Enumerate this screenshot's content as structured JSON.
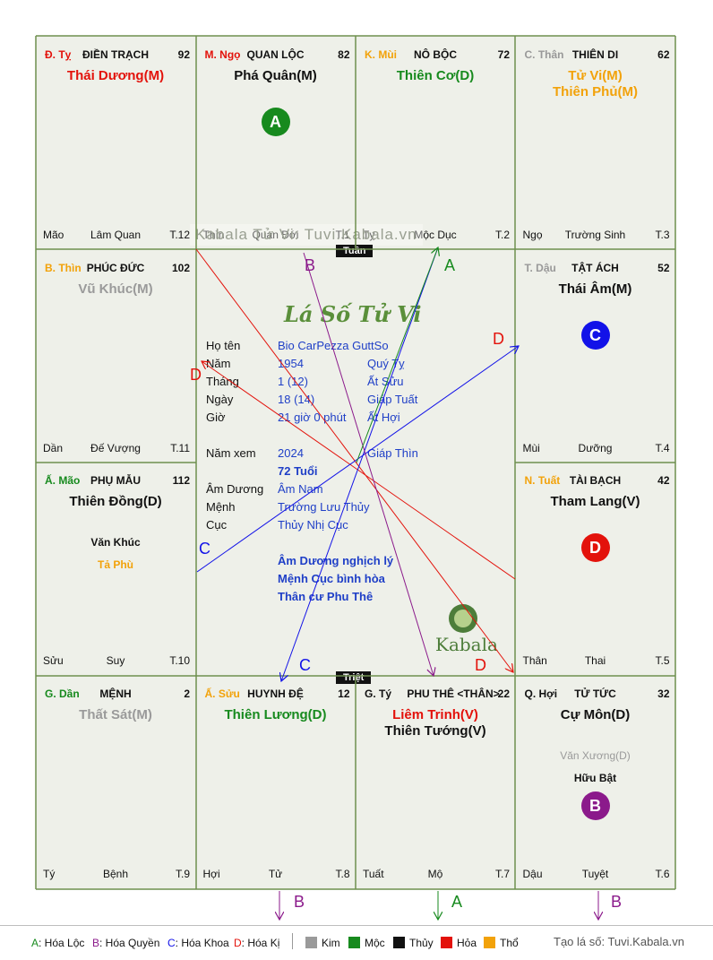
{
  "watermark": "Kabala Tử Vi: Tuvi.Kabala.vn",
  "script_title": "Lá Số Tử Vi",
  "logo_text": "Kabala",
  "tags": {
    "tuan": "Tuần",
    "triet": "Triệt"
  },
  "palaces": [
    {
      "branch": "Đ. Tỵ",
      "branch_color": "#e3120b",
      "name": "ĐIỀN TRẠCH",
      "num": "92",
      "stars": [
        {
          "t": "Thái Dương(M)",
          "c": "#e3120b"
        }
      ],
      "minor": [],
      "bl": "Mão",
      "bc": "Lâm Quan",
      "br": "T.12",
      "badge": null
    },
    {
      "branch": "M. Ngọ",
      "branch_color": "#e3120b",
      "name": "QUAN LỘC",
      "num": "82",
      "stars": [
        {
          "t": "Phá Quân(M)",
          "c": "#111111"
        }
      ],
      "minor": [],
      "bl": "Thìn",
      "bc": "Quan Đới",
      "br": "T.1",
      "badge": {
        "t": "A",
        "c": "#178a1e"
      }
    },
    {
      "branch": "K. Mùi",
      "branch_color": "#f2a20a",
      "name": "NÔ BỘC",
      "num": "72",
      "stars": [
        {
          "t": "Thiên Cơ(D)",
          "c": "#178a1e"
        }
      ],
      "minor": [],
      "bl": "Tỵ",
      "bc": "Mộc Dục",
      "br": "T.2",
      "badge": null
    },
    {
      "branch": "C. Thân",
      "branch_color": "#999999",
      "name": "THIÊN DI",
      "num": "62",
      "stars": [
        {
          "t": "Tử Vi(M)",
          "c": "#f2a20a"
        },
        {
          "t": "Thiên Phủ(M)",
          "c": "#f2a20a"
        }
      ],
      "minor": [],
      "bl": "Ngọ",
      "bc": "Trường Sinh",
      "br": "T.3",
      "badge": null
    },
    {
      "branch": "B. Thìn",
      "branch_color": "#f2a20a",
      "name": "PHÚC ĐỨC",
      "num": "102",
      "stars": [
        {
          "t": "Vũ Khúc(M)",
          "c": "#9a9a9a"
        }
      ],
      "minor": [],
      "bl": "Dần",
      "bc": "Đế Vượng",
      "br": "T.11",
      "badge": null
    },
    {
      "branch": "T. Dậu",
      "branch_color": "#999999",
      "name": "TẬT ÁCH",
      "num": "52",
      "stars": [
        {
          "t": "Thái Âm(M)",
          "c": "#111111"
        }
      ],
      "minor": [],
      "bl": "Mùi",
      "bc": "Dưỡng",
      "br": "T.4",
      "badge": {
        "t": "C",
        "c": "#1212e8"
      }
    },
    {
      "branch": "Ấ. Mão",
      "branch_color": "#178a1e",
      "name": "PHỤ MẪU",
      "num": "112",
      "stars": [
        {
          "t": "Thiên Đồng(D)",
          "c": "#111111"
        }
      ],
      "minor": [
        {
          "t": "Văn Khúc",
          "c": "#111111"
        },
        {
          "t": "Tả Phù",
          "c": "#f2a20a"
        }
      ],
      "bl": "Sửu",
      "bc": "Suy",
      "br": "T.10",
      "badge": null
    },
    {
      "branch": "N. Tuất",
      "branch_color": "#f2a20a",
      "name": "TÀI BẠCH",
      "num": "42",
      "stars": [
        {
          "t": "Tham Lang(V)",
          "c": "#111111"
        }
      ],
      "minor": [],
      "bl": "Thân",
      "bc": "Thai",
      "br": "T.5",
      "badge": {
        "t": "D",
        "c": "#e3120b"
      }
    },
    {
      "branch": "G. Dần",
      "branch_color": "#178a1e",
      "name": "MỆNH",
      "num": "2",
      "stars": [
        {
          "t": "Thất Sát(M)",
          "c": "#9a9a9a"
        }
      ],
      "minor": [],
      "bl": "Tý",
      "bc": "Bệnh",
      "br": "T.9",
      "badge": null
    },
    {
      "branch": "Ấ. Sửu",
      "branch_color": "#f2a20a",
      "name": "HUYNH ĐỆ",
      "num": "12",
      "stars": [
        {
          "t": "Thiên Lương(D)",
          "c": "#178a1e"
        }
      ],
      "minor": [],
      "bl": "Hợi",
      "bc": "Tử",
      "br": "T.8",
      "badge": null
    },
    {
      "branch": "G. Tý",
      "branch_color": "#111111",
      "name": "PHU THÊ <THÂN>",
      "num": "22",
      "stars": [
        {
          "t": "Liêm Trinh(V)",
          "c": "#e3120b"
        },
        {
          "t": "Thiên Tướng(V)",
          "c": "#111111"
        }
      ],
      "minor": [],
      "bl": "Tuất",
      "bc": "Mộ",
      "br": "T.7",
      "badge": null
    },
    {
      "branch": "Q. Hợi",
      "branch_color": "#111111",
      "name": "TỬ TỨC",
      "num": "32",
      "stars": [
        {
          "t": "Cự Môn(D)",
          "c": "#111111"
        }
      ],
      "minor": [
        {
          "t": "Văn Xương(D)",
          "c": "#9a9a9a"
        },
        {
          "t": "Hữu Bật",
          "c": "#111111"
        }
      ],
      "bl": "Dậu",
      "bc": "Tuyệt",
      "br": "T.6",
      "badge": {
        "t": "B",
        "c": "#8b1a8b"
      }
    }
  ],
  "info": {
    "rows": [
      {
        "label": "Họ tên",
        "v1": "Bio CarPezza GuttSo",
        "v2": ""
      },
      {
        "label": "Năm",
        "v1": "1954",
        "v2": "Quý Tỵ"
      },
      {
        "label": "Tháng",
        "v1": "1  (12)",
        "v2": "Ất Sửu"
      },
      {
        "label": "Ngày",
        "v1": "18  (14)",
        "v2": "Giáp Tuất"
      },
      {
        "label": "Giờ",
        "v1": "21 giờ 0 phút",
        "v2": "Ất Hợi"
      },
      {
        "label": "Năm xem",
        "v1": "2024",
        "v2": "Giáp Thìn"
      },
      {
        "label": "",
        "v1": "72 Tuổi",
        "v2": ""
      },
      {
        "label": "Âm Dương",
        "v1": "Âm Nam",
        "v2": ""
      },
      {
        "label": "Mệnh",
        "v1": "Trường Lưu Thủy",
        "v2": ""
      },
      {
        "label": "Cục",
        "v1": "Thủy Nhị Cục",
        "v2": ""
      }
    ],
    "notes": [
      "Âm Dương nghịch lý",
      "Mệnh Cục bình hòa",
      "Thân cư Phu Thê"
    ]
  },
  "arrow_labels": [
    {
      "t": "B",
      "c": "#8b1a8b"
    },
    {
      "t": "A",
      "c": "#178a1e"
    },
    {
      "t": "D",
      "c": "#e3120b"
    },
    {
      "t": "D",
      "c": "#e3120b"
    },
    {
      "t": "C",
      "c": "#1212e8"
    },
    {
      "t": "C",
      "c": "#1212e8"
    },
    {
      "t": "D",
      "c": "#e3120b"
    },
    {
      "t": "B",
      "c": "#8b1a8b"
    },
    {
      "t": "A",
      "c": "#178a1e"
    },
    {
      "t": "B",
      "c": "#8b1a8b"
    }
  ],
  "legend": {
    "hoa": [
      {
        "k": "A",
        "t": ": Hóa Lộc",
        "c": "#178a1e"
      },
      {
        "k": "B",
        "t": ": Hóa Quyền",
        "c": "#8b1a8b"
      },
      {
        "k": "C",
        "t": ": Hóa Khoa",
        "c": "#1212e8"
      },
      {
        "k": "D",
        "t": ": Hóa Kị",
        "c": "#e3120b"
      }
    ],
    "elements": [
      {
        "t": "Kim",
        "c": "#9a9a9a"
      },
      {
        "t": "Mộc",
        "c": "#178a1e"
      },
      {
        "t": "Thủy",
        "c": "#111111"
      },
      {
        "t": "Hỏa",
        "c": "#e3120b"
      },
      {
        "t": "Thổ",
        "c": "#f2a20a"
      }
    ],
    "site": "Tạo lá số: Tuvi.Kabala.vn"
  }
}
